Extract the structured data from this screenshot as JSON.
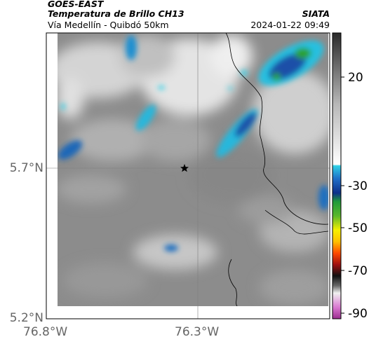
{
  "header": {
    "satellite": "GOES-EAST",
    "product": "Temperatura de Brillo CH13",
    "region": "Vía Medellín - Quibdó 50km",
    "agency": "SIATA",
    "timestamp": "2024-01-22 09:49"
  },
  "map": {
    "lat_labels": [
      "5.7°N",
      "5.2°N"
    ],
    "lon_labels": [
      "76.8°W",
      "76.3°W"
    ],
    "marker": "star-marker"
  },
  "colorbar": {
    "ticks": [
      "20",
      "-30",
      "-50",
      "-70",
      "-90"
    ],
    "tick_values": [
      20,
      -30,
      -50,
      -70,
      -90
    ],
    "range": [
      -95,
      40
    ]
  },
  "colors": {
    "cloud_cyan": "#29c8e0",
    "cloud_blue": "#1e4fa8",
    "cloud_green": "#2aa22a",
    "ground_gray": "#8a8a8a"
  }
}
